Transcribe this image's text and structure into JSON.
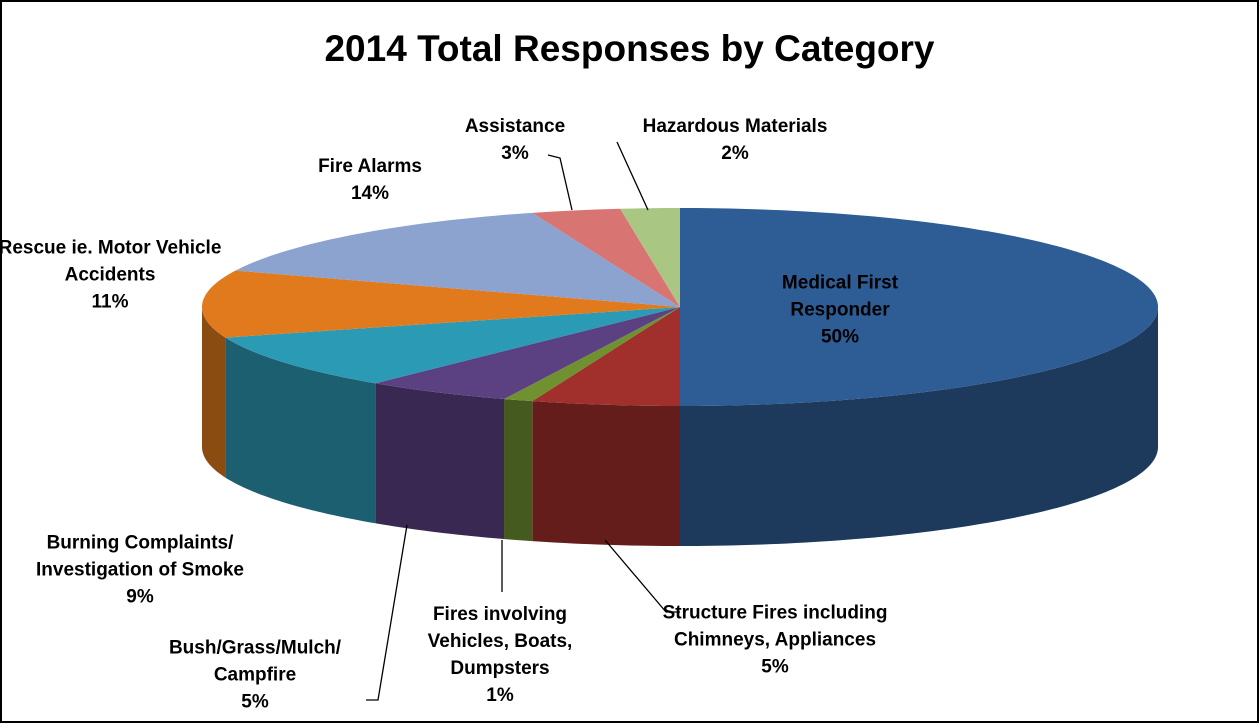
{
  "chart_data": {
    "type": "pie3d",
    "title": "2014 Total Responses by Category",
    "categories": [
      "Medical First Responder",
      "Structure Fires including Chimneys, Appliances",
      "Fires involving Vehicles, Boats, Dumpsters",
      "Bush/Grass/Mulch/ Campfire",
      "Burning Complaints/ Investigation of Smoke",
      "Rescue ie. Motor Vehicle Accidents",
      "Fire Alarms",
      "Assistance",
      "Hazardous Materials"
    ],
    "values": [
      50,
      5,
      1,
      5,
      9,
      11,
      14,
      3,
      2
    ],
    "value_labels": [
      "50%",
      "5%",
      "1%",
      "5%",
      "9%",
      "11%",
      "14%",
      "3%",
      "2%"
    ],
    "colors": [
      "#2e5c94",
      "#a12f2c",
      "#6f9130",
      "#5c4182",
      "#2b9ab4",
      "#e07a1c",
      "#8ca2cf",
      "#d87573",
      "#a9c683"
    ]
  }
}
